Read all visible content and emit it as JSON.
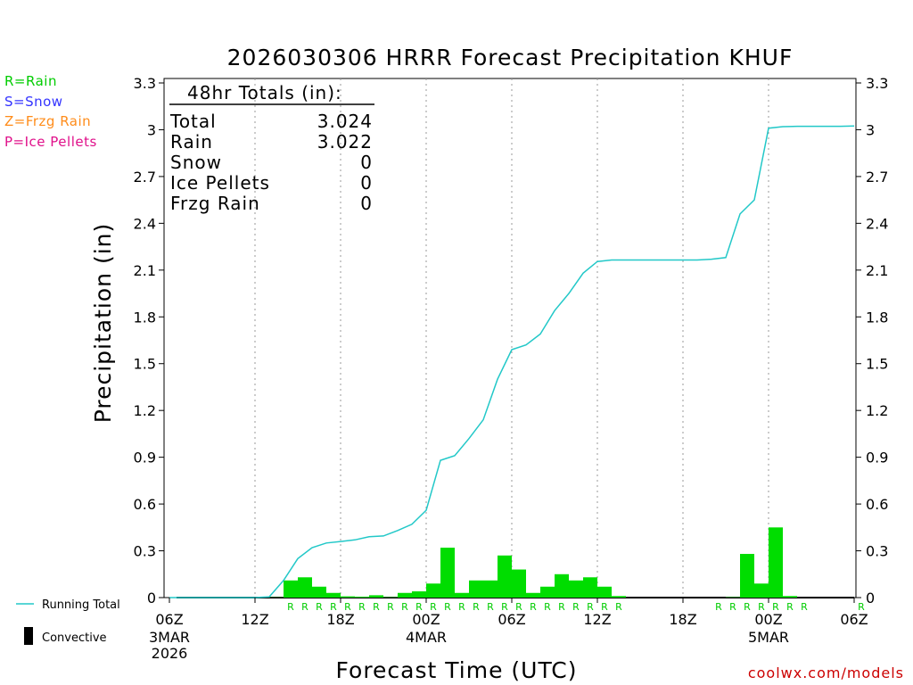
{
  "title": "2026030306 HRRR Forecast Precipitation KHUF",
  "ptype_legend": [
    {
      "label": "R=Rain",
      "color": "#00cc00"
    },
    {
      "label": "S=Snow",
      "color": "#3333ff"
    },
    {
      "label": "Z=Frzg Rain",
      "color": "#ff8c1a"
    },
    {
      "label": "P=Ice Pellets",
      "color": "#e0108a"
    }
  ],
  "totals": {
    "heading": "48hr Totals (in):",
    "rows": [
      {
        "label": "Total",
        "value": "3.024"
      },
      {
        "label": "Rain",
        "value": "3.022"
      },
      {
        "label": "Snow",
        "value": "0"
      },
      {
        "label": "Ice Pellets",
        "value": "0"
      },
      {
        "label": "Frzg Rain",
        "value": "0"
      }
    ]
  },
  "legend": {
    "running_total": "Running Total",
    "convective": "Convective"
  },
  "credit": "coolwx.com/models",
  "colors": {
    "bars": "#00dd00",
    "running_total": "#22c8c8",
    "rain_marker": "#00cc00",
    "credit": "#cc0000"
  },
  "chart_data": {
    "type": "bar",
    "title": "2026030306 HRRR Forecast Precipitation KHUF",
    "xlabel": "Forecast Time (UTC)",
    "ylabel": "Precipitation (in)",
    "ylim": [
      0,
      3.3
    ],
    "xlim_hours": [
      0,
      48
    ],
    "yticks": [
      {
        "value": 0,
        "label": "0"
      },
      {
        "value": 0.3,
        "label": "0.3"
      },
      {
        "value": 0.6,
        "label": "0.6"
      },
      {
        "value": 0.9,
        "label": "0.9"
      },
      {
        "value": 1.2,
        "label": "1.2"
      },
      {
        "value": 1.5,
        "label": "1.5"
      },
      {
        "value": 1.8,
        "label": "1.8"
      },
      {
        "value": 2.1,
        "label": "2.1"
      },
      {
        "value": 2.4,
        "label": "2.4"
      },
      {
        "value": 2.7,
        "label": "2.7"
      },
      {
        "value": 3.0,
        "label": "3"
      },
      {
        "value": 3.3,
        "label": "3.3"
      }
    ],
    "xticks": [
      {
        "hour": 0,
        "label": "06Z",
        "sub": [
          "3MAR",
          "2026"
        ]
      },
      {
        "hour": 6,
        "label": "12Z",
        "sub": []
      },
      {
        "hour": 12,
        "label": "18Z",
        "sub": []
      },
      {
        "hour": 18,
        "label": "00Z",
        "sub": [
          "4MAR"
        ]
      },
      {
        "hour": 24,
        "label": "06Z",
        "sub": []
      },
      {
        "hour": 30,
        "label": "12Z",
        "sub": []
      },
      {
        "hour": 36,
        "label": "18Z",
        "sub": []
      },
      {
        "hour": 42,
        "label": "00Z",
        "sub": [
          "5MAR"
        ]
      },
      {
        "hour": 48,
        "label": "06Z",
        "sub": []
      }
    ],
    "gridlines": "vertical dotted at 6-hour ticks",
    "hourly_precip": [
      0,
      0,
      0,
      0,
      0,
      0,
      0,
      0.002,
      0.11,
      0.13,
      0.07,
      0.03,
      0.008,
      0.006,
      0.015,
      0.003,
      0.03,
      0.04,
      0.09,
      0.32,
      0.03,
      0.11,
      0.11,
      0.27,
      0.18,
      0.03,
      0.07,
      0.15,
      0.11,
      0.13,
      0.07,
      0.01,
      0,
      0,
      0,
      0,
      0,
      0,
      0,
      0.003,
      0.28,
      0.09,
      0.45,
      0.01,
      0,
      0,
      0,
      0
    ],
    "running_total": [
      0,
      0,
      0,
      0,
      0,
      0,
      0,
      0.005,
      0.11,
      0.25,
      0.32,
      0.35,
      0.36,
      0.37,
      0.39,
      0.395,
      0.43,
      0.47,
      0.56,
      0.88,
      0.91,
      1.02,
      1.14,
      1.4,
      1.59,
      1.62,
      1.69,
      1.84,
      1.95,
      2.08,
      2.155,
      2.165,
      2.165,
      2.165,
      2.165,
      2.165,
      2.165,
      2.165,
      2.17,
      2.18,
      2.46,
      2.55,
      3.01,
      3.02,
      3.022,
      3.022,
      3.022,
      3.022,
      3.024
    ],
    "ptype_markers": {
      "symbol": "R",
      "hours": [
        8,
        9,
        10,
        11,
        12,
        13,
        14,
        15,
        16,
        17,
        18,
        19,
        20,
        21,
        22,
        23,
        24,
        25,
        26,
        27,
        28,
        29,
        30,
        31,
        38,
        39,
        40,
        41,
        42,
        43,
        44,
        48
      ]
    }
  }
}
